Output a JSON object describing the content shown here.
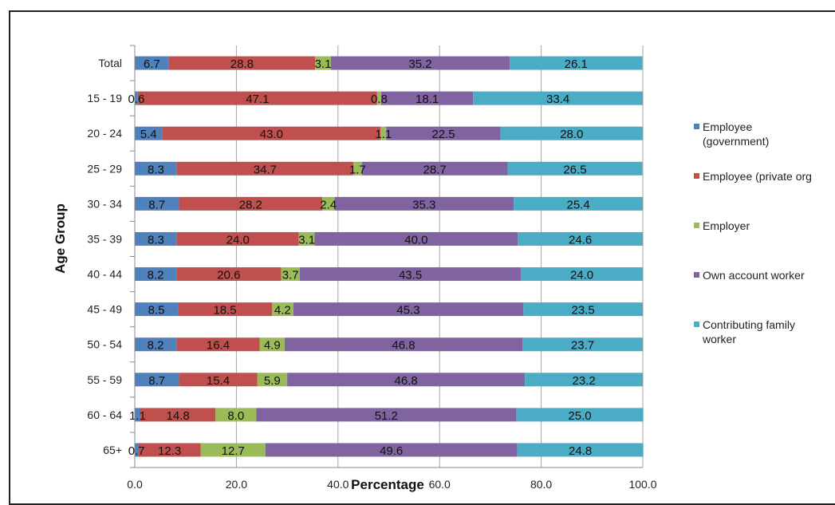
{
  "chart_data": {
    "type": "bar",
    "orientation": "horizontal",
    "stacked": true,
    "title": "",
    "xlabel": "Percentage",
    "ylabel": "Age Group",
    "xlim": [
      0,
      100
    ],
    "x_ticks": [
      "0.0",
      "20.0",
      "40.0",
      "60.0",
      "80.0",
      "100.0"
    ],
    "grid": "vertical",
    "legend_position": "right",
    "categories": [
      "Total",
      "15 - 19",
      "20 - 24",
      "25 - 29",
      "30 - 34",
      "35 - 39",
      "40 - 44",
      "45 - 49",
      "50 - 54",
      "55 - 59",
      "60 - 64",
      "65+"
    ],
    "series": [
      {
        "name": "Employee (government)",
        "color": "#4f81bd",
        "values": [
          6.7,
          0.6,
          5.4,
          8.3,
          8.7,
          8.3,
          8.2,
          8.5,
          8.2,
          8.7,
          1.1,
          0.7
        ],
        "labels": [
          "6.7",
          "0.6",
          "5.4",
          "8.3",
          "8.7",
          "8.3",
          "8.2",
          "8.5",
          "8.2",
          "8.7",
          "1.1",
          "0.7"
        ]
      },
      {
        "name": "Employee (private org",
        "color": "#c0504d",
        "values": [
          28.8,
          47.1,
          43.0,
          34.7,
          28.2,
          24.0,
          20.6,
          18.5,
          16.4,
          15.4,
          14.8,
          12.3
        ],
        "labels": [
          "28.8",
          "47.1",
          "43.0",
          "34.7",
          "28.2",
          "24.0",
          "20.6",
          "18.5",
          "16.4",
          "15.4",
          "14.8",
          "12.3"
        ]
      },
      {
        "name": "Employer",
        "color": "#9bbb59",
        "values": [
          3.1,
          0.8,
          1.1,
          1.7,
          2.4,
          3.1,
          3.7,
          4.2,
          4.9,
          5.9,
          8.0,
          12.7
        ],
        "labels": [
          "3.1",
          "0.8",
          "1.1",
          "1.7",
          "2.4",
          "3.1",
          "3.7",
          "4.2",
          "4.9",
          "5.9",
          "8.0",
          "12.7"
        ]
      },
      {
        "name": "Own account worker",
        "color": "#8064a2",
        "values": [
          35.2,
          18.1,
          22.5,
          28.7,
          35.3,
          40.0,
          43.5,
          45.3,
          46.8,
          46.8,
          51.2,
          49.6
        ],
        "labels": [
          "35.2",
          "18.1",
          "22.5",
          "28.7",
          "35.3",
          "40.0",
          "43.5",
          "45.3",
          "46.8",
          "46.8",
          "51.2",
          "49.6"
        ]
      },
      {
        "name": "Contributing family worker",
        "color": "#4bacc6",
        "values": [
          26.1,
          33.4,
          28.0,
          26.5,
          25.4,
          24.6,
          24.0,
          23.5,
          23.7,
          23.2,
          25.0,
          24.8
        ],
        "labels": [
          "26.1",
          "33.4",
          "28.0",
          "26.5",
          "25.4",
          "24.6",
          "24.0",
          "23.5",
          "23.7",
          "23.2",
          "25.0",
          "24.8"
        ]
      }
    ]
  },
  "legend": {
    "items": [
      {
        "label": "Employee\n(government)",
        "color": "#4f81bd",
        "icon": "square-swatch"
      },
      {
        "label": "Employee (private org",
        "color": "#c0504d",
        "icon": "square-swatch"
      },
      {
        "label": "Employer",
        "color": "#9bbb59",
        "icon": "square-swatch"
      },
      {
        "label": "Own account worker",
        "color": "#8064a2",
        "icon": "square-swatch"
      },
      {
        "label": "Contributing family\nworker",
        "color": "#4bacc6",
        "icon": "square-swatch"
      }
    ]
  }
}
